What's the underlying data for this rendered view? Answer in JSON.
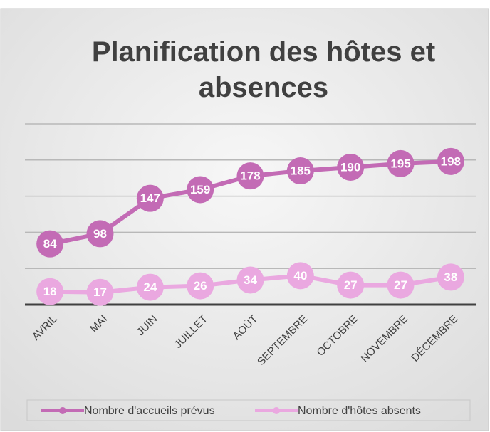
{
  "chart_data": {
    "type": "line",
    "title": "Planification des hôtes et absences",
    "categories": [
      "AVRIL",
      "MAI",
      "JUIN",
      "JUILLET",
      "AOÛT",
      "SEPTEMBRE",
      "OCTOBRE",
      "NOVEMBRE",
      "DÉCEMBRE"
    ],
    "series": [
      {
        "name": "Nombre d'accueils prévus",
        "color": "#c36bb5",
        "values": [
          84,
          98,
          147,
          159,
          178,
          185,
          190,
          195,
          198
        ]
      },
      {
        "name": "Nombre d'hôtes absents",
        "color": "#eaa8e0",
        "values": [
          18,
          17,
          24,
          26,
          34,
          40,
          27,
          27,
          38
        ]
      }
    ],
    "ylim": [
      0,
      250
    ],
    "yticks": [
      0,
      50,
      100,
      150,
      200,
      250
    ],
    "grid": true,
    "legend": "bottom"
  }
}
